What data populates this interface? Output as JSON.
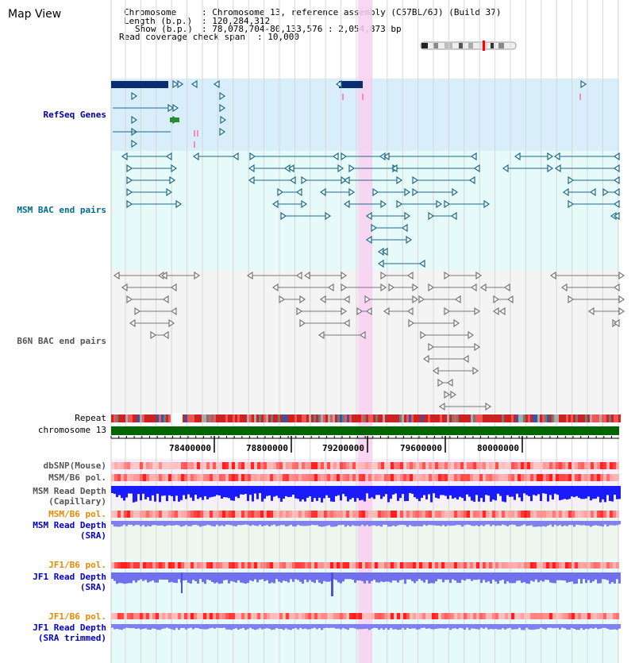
{
  "page": {
    "title": "Map View"
  },
  "info": {
    "chromosome_label": "Chromosome",
    "chromosome_value": "Chromosome 13, reference assembly (C57BL/6J) (Build 37)",
    "length_label": "Length (b.p.)",
    "length_value": "120,284,312",
    "show_label": "Show (b.p.)",
    "show_value": "78,078,704-80,133,576 : 2,054,873 bp",
    "coverage_label": "Read coverage check span",
    "coverage_value": "10,000"
  },
  "tracks": {
    "refseq": "RefSeq Genes",
    "msm_bac": "MSM BAC end pairs",
    "b6n_bac": "B6N BAC end pairs",
    "repeat": "Repeat",
    "chromosome": "chromosome 13",
    "dbsnp": "dbSNP(Mouse)",
    "msm_b6_pol": "MSM/B6 pol.",
    "msm_depth_cap_1": "MSM Read Depth",
    "msm_depth_cap_2": "(Capillary)",
    "msm_b6_pol_2": "MSM/B6 pol.",
    "msm_depth_sra_1": "MSM Read Depth",
    "msm_depth_sra_2": "(SRA)",
    "jf1_b6_pol": "JF1/B6 pol.",
    "jf1_depth_sra_1": "JF1 Read Depth",
    "jf1_depth_sra_2": "(SRA)",
    "jf1_b6_pol_2": "JF1/B6 pol.",
    "jf1_depth_trim_1": "JF1 Read Depth",
    "jf1_depth_trim_2": "(SRA trimmed)"
  },
  "axis": {
    "ticks": [
      "78400000",
      "78800000",
      "79200000",
      "79600000",
      "80000000"
    ]
  },
  "colors": {
    "refseq_bg": "#d8eefa",
    "bac_bg": "#e6fafa",
    "highlight": "#f8cff0",
    "msm_color": "#1d6b8a",
    "b6n_color": "#777777",
    "chromosome_bar": "#006400",
    "depth_capillary": "#1a1aff",
    "depth_sra": "#8080ee",
    "pol_red": "#ff0000"
  }
}
